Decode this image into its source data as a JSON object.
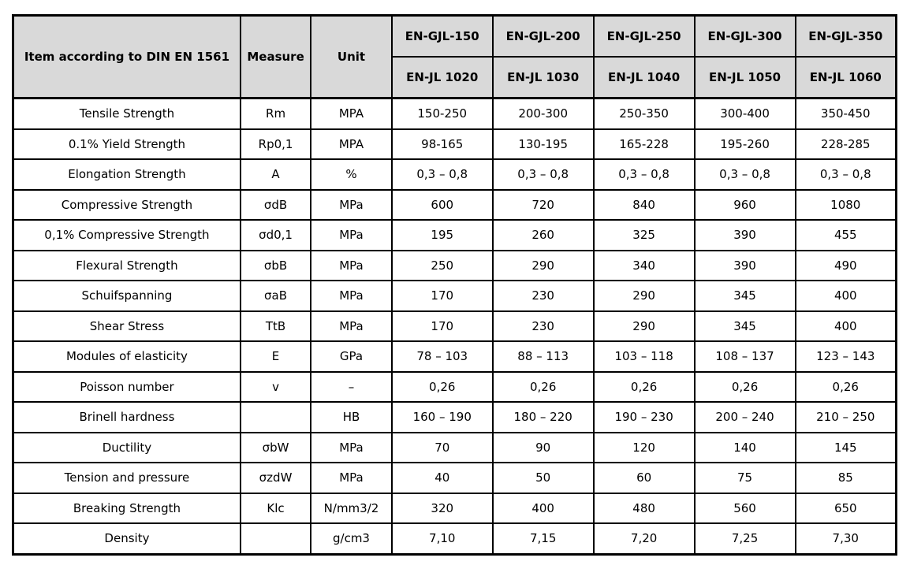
{
  "table": {
    "colors": {
      "header_bg": "#d9d9d9",
      "border": "#000000"
    },
    "header": {
      "item": "Item according to DIN EN 1561",
      "measure": "Measure",
      "unit": "Unit",
      "grades": [
        "EN-GJL-150",
        "EN-GJL-200",
        "EN-GJL-250",
        "EN-GJL-300",
        "EN-GJL-350"
      ],
      "codes": [
        "EN-JL 1020",
        "EN-JL 1030",
        "EN-JL 1040",
        "EN-JL 1050",
        "EN-JL 1060"
      ]
    },
    "rows": [
      {
        "item": "Tensile Strength",
        "measure": "Rm",
        "unit": "MPA",
        "values": [
          "150-250",
          "200-300",
          "250-350",
          "300-400",
          "350-450"
        ]
      },
      {
        "item": "0.1% Yield Strength",
        "measure": "Rp0,1",
        "unit": "MPA",
        "values": [
          "98-165",
          "130-195",
          "165-228",
          "195-260",
          "228-285"
        ]
      },
      {
        "item": "Elongation Strength",
        "measure": "A",
        "unit": "%",
        "values": [
          "0,3 – 0,8",
          "0,3 – 0,8",
          "0,3 – 0,8",
          "0,3 – 0,8",
          "0,3 – 0,8"
        ]
      },
      {
        "item": "Compressive Strength",
        "measure": "σdB",
        "unit": "MPa",
        "values": [
          "600",
          "720",
          "840",
          "960",
          "1080"
        ]
      },
      {
        "item": "0,1% Compressive Strength",
        "measure": "σd0,1",
        "unit": "MPa",
        "values": [
          "195",
          "260",
          "325",
          "390",
          "455"
        ]
      },
      {
        "item": "Flexural Strength",
        "measure": "σbB",
        "unit": "MPa",
        "values": [
          "250",
          "290",
          "340",
          "390",
          "490"
        ]
      },
      {
        "item": "Schuifspanning",
        "measure": "σaB",
        "unit": "MPa",
        "values": [
          "170",
          "230",
          "290",
          "345",
          "400"
        ]
      },
      {
        "item": "Shear Stress",
        "measure": "TtB",
        "unit": "MPa",
        "values": [
          "170",
          "230",
          "290",
          "345",
          "400"
        ]
      },
      {
        "item": "Modules of elasticity",
        "measure": "E",
        "unit": "GPa",
        "values": [
          "78 – 103",
          "88 – 113",
          "103 – 118",
          "108 – 137",
          "123 – 143"
        ]
      },
      {
        "item": "Poisson number",
        "measure": "v",
        "unit": "–",
        "values": [
          "0,26",
          "0,26",
          "0,26",
          "0,26",
          "0,26"
        ]
      },
      {
        "item": "Brinell hardness",
        "measure": "",
        "unit": "HB",
        "values": [
          "160 – 190",
          "180 – 220",
          "190 – 230",
          "200 – 240",
          "210 – 250"
        ]
      },
      {
        "item": "Ductility",
        "measure": "σbW",
        "unit": "MPa",
        "values": [
          "70",
          "90",
          "120",
          "140",
          "145"
        ]
      },
      {
        "item": "Tension and pressure",
        "measure": "σzdW",
        "unit": "MPa",
        "values": [
          "40",
          "50",
          "60",
          "75",
          "85"
        ]
      },
      {
        "item": "Breaking Strength",
        "measure": "Klc",
        "unit": "N/mm3/2",
        "values": [
          "320",
          "400",
          "480",
          "560",
          "650"
        ]
      },
      {
        "item": "Density",
        "measure": "",
        "unit": "g/cm3",
        "values": [
          "7,10",
          "7,15",
          "7,20",
          "7,25",
          "7,30"
        ]
      }
    ]
  }
}
